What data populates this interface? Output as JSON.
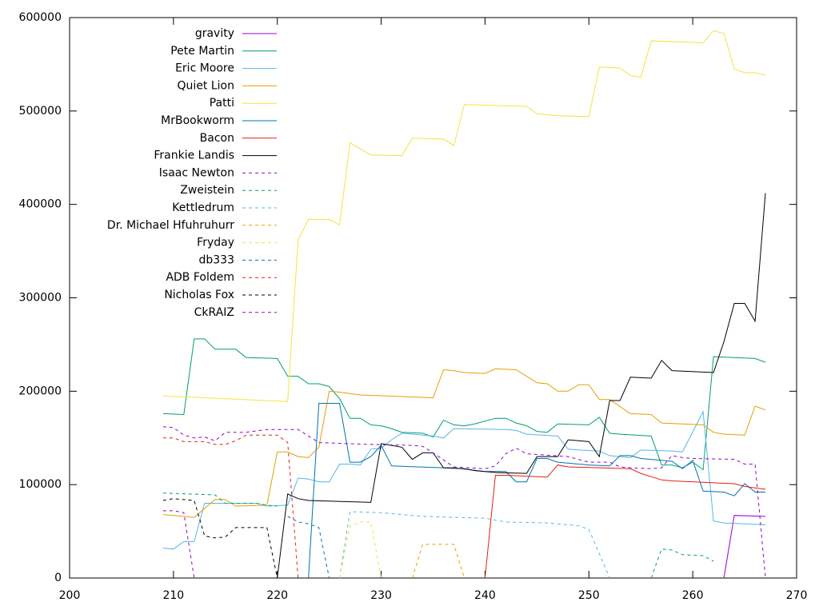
{
  "chart_data": {
    "type": "line",
    "xlim": [
      200,
      270
    ],
    "xticks": [
      200,
      210,
      220,
      230,
      240,
      250,
      260,
      270
    ],
    "ylim": [
      0,
      600000
    ],
    "yticks": [
      0,
      100000,
      200000,
      300000,
      400000,
      500000,
      600000
    ],
    "legend": "top-left",
    "series": [
      {
        "name": "gravity",
        "color": "#9400d3",
        "dashed": false,
        "x": [
          263,
          264,
          267
        ],
        "values": [
          0,
          67000,
          66000
        ]
      },
      {
        "name": "Pete Martin",
        "color": "#009e73",
        "dashed": false,
        "x": [
          209,
          211,
          212,
          213,
          214,
          216,
          217,
          220,
          221,
          222,
          223,
          224,
          225,
          226,
          227,
          228,
          229,
          230,
          231,
          232,
          234,
          235,
          236,
          237,
          238,
          239,
          241,
          242,
          243,
          244,
          245,
          246,
          247,
          250,
          251,
          252,
          253,
          256,
          257,
          258,
          259,
          260,
          261,
          262,
          266,
          267
        ],
        "values": [
          176000,
          175000,
          256000,
          256000,
          245000,
          245000,
          236000,
          235000,
          216000,
          216000,
          208000,
          208000,
          205000,
          192000,
          171000,
          171000,
          164000,
          163000,
          160000,
          156000,
          155000,
          151000,
          169000,
          164000,
          163000,
          165000,
          171000,
          171000,
          166000,
          163000,
          157000,
          156000,
          165000,
          164000,
          172000,
          155000,
          154000,
          152000,
          121000,
          121000,
          118000,
          124000,
          116000,
          237000,
          235000,
          231000
        ]
      },
      {
        "name": "Eric Moore",
        "color": "#56b4e9",
        "dashed": false,
        "x": [
          209,
          210,
          211,
          212,
          213,
          218,
          219,
          221,
          222,
          223,
          224,
          225,
          226,
          227,
          228,
          229,
          230,
          231,
          232,
          235,
          236,
          237,
          242,
          243,
          244,
          247,
          248,
          249,
          251,
          252,
          253,
          254,
          255,
          258,
          259,
          261,
          262,
          263,
          267
        ],
        "values": [
          32000,
          31000,
          39000,
          39000,
          80000,
          80000,
          77000,
          78000,
          107000,
          106000,
          103000,
          103000,
          122000,
          122000,
          121000,
          138000,
          139000,
          148000,
          155000,
          152000,
          150000,
          160000,
          159000,
          158000,
          154000,
          152000,
          138000,
          137000,
          136000,
          131000,
          130000,
          129000,
          137000,
          136000,
          135000,
          178000,
          61000,
          59000,
          57000
        ]
      },
      {
        "name": "Quiet Lion",
        "color": "#e69f00",
        "dashed": false,
        "x": [
          209,
          211,
          212,
          214,
          215,
          216,
          219,
          220,
          221,
          222,
          223,
          224,
          225,
          226,
          228,
          235,
          236,
          237,
          238,
          240,
          241,
          243,
          245,
          246,
          247,
          248,
          249,
          250,
          251,
          252,
          254,
          256,
          257,
          261,
          262,
          263,
          265,
          266,
          267
        ],
        "values": [
          68000,
          66000,
          65000,
          84000,
          84000,
          77000,
          78000,
          135000,
          135000,
          130000,
          129000,
          140000,
          200000,
          199000,
          196000,
          193000,
          223000,
          222000,
          220000,
          219000,
          224000,
          223000,
          209000,
          208000,
          200000,
          200000,
          207000,
          207000,
          191000,
          191000,
          176000,
          175000,
          166000,
          164000,
          156000,
          154000,
          153000,
          184000,
          180000
        ]
      },
      {
        "name": "Patti",
        "color": "#f0e442",
        "dashed": false,
        "x": [
          209,
          221,
          222,
          223,
          225,
          226,
          227,
          229,
          232,
          233,
          236,
          237,
          238,
          244,
          245,
          247,
          250,
          251,
          253,
          254,
          255,
          256,
          261,
          262,
          263,
          264,
          265,
          266,
          267
        ],
        "values": [
          195000,
          189000,
          362000,
          384000,
          384000,
          378000,
          466000,
          453000,
          452000,
          471000,
          470000,
          463000,
          507000,
          505000,
          497000,
          495000,
          494000,
          547000,
          546000,
          538000,
          536000,
          575000,
          573000,
          586000,
          583000,
          545000,
          541000,
          541000,
          538000
        ]
      },
      {
        "name": "MrBookworm",
        "color": "#0072b2",
        "dashed": false,
        "x": [
          223,
          224,
          226,
          227,
          228,
          229,
          230,
          231,
          236,
          237,
          240,
          242,
          243,
          244,
          245,
          246,
          247,
          250,
          252,
          253,
          254,
          255,
          257,
          258,
          259,
          260,
          261,
          263,
          264,
          265,
          266,
          267
        ],
        "values": [
          0,
          187000,
          187000,
          124000,
          124000,
          130000,
          142000,
          120000,
          118000,
          118000,
          114000,
          114000,
          103000,
          103000,
          128000,
          128000,
          124000,
          121000,
          120000,
          131000,
          131000,
          128000,
          126000,
          125000,
          117000,
          126000,
          93000,
          92000,
          88000,
          101000,
          92000,
          92000
        ]
      },
      {
        "name": "Bacon",
        "color": "#e51e10",
        "dashed": false,
        "x": [
          240,
          241,
          242,
          246,
          247,
          248,
          254,
          255,
          257,
          258,
          264,
          265,
          267
        ],
        "values": [
          0,
          110000,
          110000,
          108000,
          121000,
          119000,
          117000,
          112000,
          105000,
          104000,
          101000,
          98000,
          95000
        ]
      },
      {
        "name": "Frankie Landis",
        "color": "#000000",
        "dashed": false,
        "x": [
          220,
          221,
          222,
          223,
          229,
          230,
          232,
          233,
          234,
          235,
          236,
          238,
          239,
          241,
          244,
          245,
          247,
          248,
          250,
          251,
          252,
          253,
          254,
          256,
          257,
          258,
          262,
          263,
          264,
          265,
          266,
          267
        ],
        "values": [
          0,
          90000,
          85000,
          83000,
          81000,
          144000,
          140000,
          127000,
          134000,
          134000,
          118000,
          117000,
          115000,
          113000,
          112000,
          130000,
          130000,
          148000,
          146000,
          130000,
          190000,
          190000,
          215000,
          214000,
          233000,
          222000,
          220000,
          253000,
          294000,
          294000,
          275000,
          412000
        ]
      },
      {
        "name": "Isaac Newton",
        "color": "#9400d3",
        "dashed": true,
        "x": [
          209,
          210,
          211,
          212
        ],
        "values": [
          72000,
          72000,
          70000,
          0
        ]
      },
      {
        "name": "Zweistein",
        "color": "#009e73",
        "dashed": true,
        "x": [
          209,
          214,
          215,
          218,
          219,
          220,
          240,
          256,
          257,
          258,
          259,
          261,
          262
        ],
        "values": [
          91000,
          89000,
          80000,
          80000,
          78000,
          77000,
          null,
          0,
          31000,
          30000,
          25000,
          24000,
          18000
        ]
      },
      {
        "name": "Kettledrum",
        "color": "#56b4e9",
        "dashed": true,
        "x": [
          226,
          227,
          230,
          232,
          234,
          240,
          242,
          246,
          249,
          250,
          252
        ],
        "values": [
          0,
          71000,
          70000,
          68000,
          66000,
          64000,
          60000,
          59000,
          56000,
          52000,
          0
        ]
      },
      {
        "name": "Dr. Michael Hfuhruhurr",
        "color": "#e69f00",
        "dashed": true,
        "x": [
          233,
          234,
          237,
          238
        ],
        "values": [
          0,
          36000,
          36000,
          0
        ]
      },
      {
        "name": "Fryday",
        "color": "#f0e442",
        "dashed": true,
        "x": [
          226,
          227,
          228,
          229,
          230
        ],
        "values": [
          0,
          56000,
          60000,
          60000,
          0
        ]
      },
      {
        "name": "db333",
        "color": "#0072b2",
        "dashed": true,
        "x": [
          221,
          222,
          223,
          224,
          225
        ],
        "values": [
          66000,
          60000,
          58000,
          54000,
          0
        ]
      },
      {
        "name": "ADB Foldem",
        "color": "#e51e10",
        "dashed": true,
        "x": [
          209,
          210,
          211,
          213,
          214,
          215,
          216,
          217,
          220,
          221,
          222
        ],
        "values": [
          150000,
          150000,
          146000,
          146000,
          143000,
          143000,
          147000,
          153000,
          153000,
          145000,
          0
        ]
      },
      {
        "name": "Nicholas Fox",
        "color": "#000000",
        "dashed": true,
        "x": [
          209,
          210,
          211,
          212,
          213,
          214,
          215,
          216,
          219,
          220
        ],
        "values": [
          83000,
          85000,
          84000,
          83000,
          45000,
          43000,
          44000,
          54000,
          54000,
          0
        ]
      },
      {
        "name": "CkRAIZ",
        "color": "#9400d3",
        "dashed": true,
        "x": [
          209,
          210,
          211,
          212,
          213,
          214,
          215,
          217,
          219,
          222,
          223,
          224,
          229,
          233,
          234,
          235,
          237,
          240,
          241,
          242,
          243,
          244,
          248,
          250,
          252,
          253,
          254,
          256,
          257,
          258,
          259,
          260,
          264,
          265,
          266,
          267
        ],
        "values": [
          162000,
          161000,
          153000,
          150000,
          151000,
          147000,
          156000,
          156000,
          159000,
          159000,
          152000,
          145000,
          143000,
          142000,
          141000,
          134000,
          119000,
          117000,
          120000,
          133000,
          139000,
          133000,
          130000,
          124000,
          124000,
          119000,
          118000,
          117000,
          118000,
          131000,
          129000,
          128000,
          127000,
          122000,
          122000,
          0
        ]
      }
    ]
  }
}
